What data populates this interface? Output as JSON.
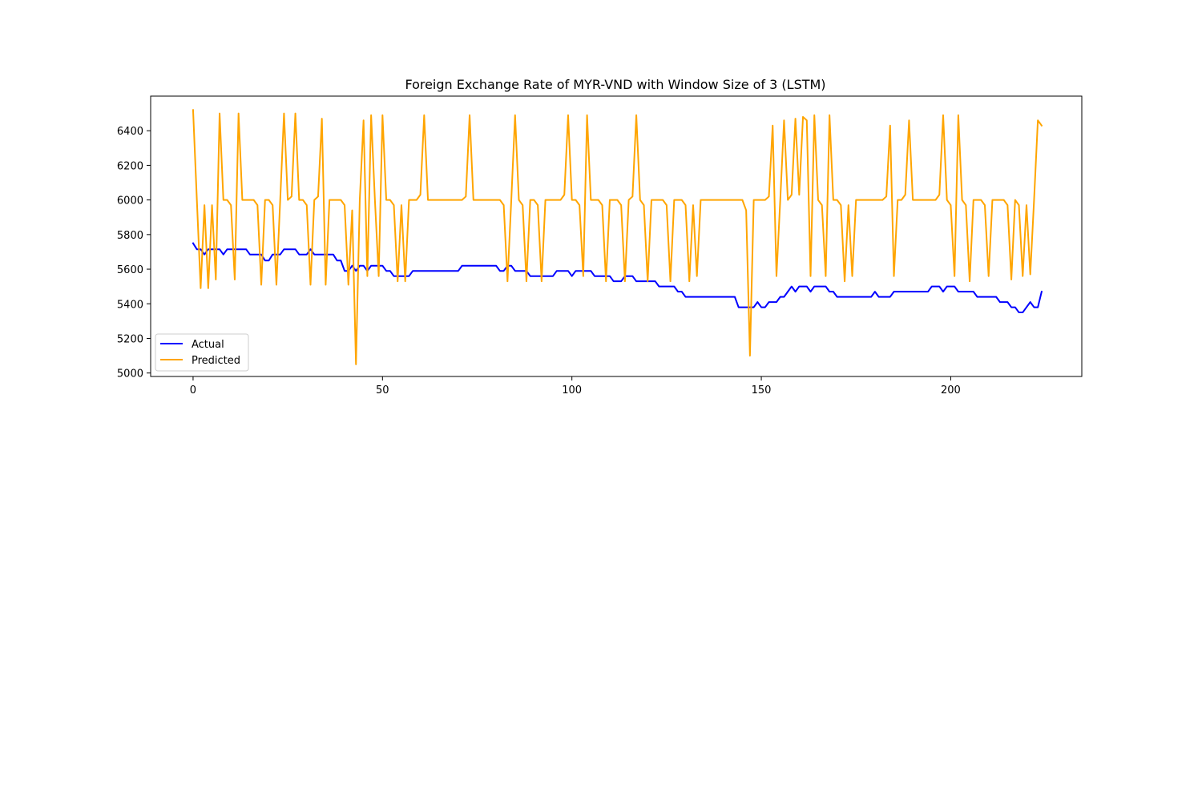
{
  "chart_data": {
    "type": "line",
    "title": "Foreign Exchange Rate of MYR-VND with Window Size of 3 (LSTM)",
    "xlabel": "",
    "ylabel": "",
    "xlim": [
      -11.2,
      234.6
    ],
    "ylim": [
      4980,
      6600
    ],
    "xticks": [
      0,
      50,
      100,
      150,
      200
    ],
    "yticks": [
      5000,
      5200,
      5400,
      5600,
      5800,
      6000,
      6200,
      6400
    ],
    "legend_position": "lower-left",
    "grid": false,
    "series": [
      {
        "name": "Actual",
        "color": "#0000ff",
        "points": [
          [
            0,
            5750
          ],
          [
            1,
            5715
          ],
          [
            2,
            5715
          ],
          [
            3,
            5685
          ],
          [
            4,
            5715
          ],
          [
            5,
            5715
          ],
          [
            6,
            5715
          ],
          [
            7,
            5715
          ],
          [
            8,
            5685
          ],
          [
            9,
            5715
          ],
          [
            10,
            5715
          ],
          [
            11,
            5715
          ],
          [
            12,
            5715
          ],
          [
            13,
            5715
          ],
          [
            14,
            5715
          ],
          [
            15,
            5685
          ],
          [
            16,
            5685
          ],
          [
            17,
            5685
          ],
          [
            18,
            5685
          ],
          [
            19,
            5650
          ],
          [
            20,
            5650
          ],
          [
            21,
            5685
          ],
          [
            22,
            5685
          ],
          [
            23,
            5685
          ],
          [
            24,
            5715
          ],
          [
            25,
            5715
          ],
          [
            26,
            5715
          ],
          [
            27,
            5715
          ],
          [
            28,
            5685
          ],
          [
            29,
            5685
          ],
          [
            30,
            5685
          ],
          [
            31,
            5715
          ],
          [
            32,
            5685
          ],
          [
            33,
            5685
          ],
          [
            34,
            5685
          ],
          [
            35,
            5685
          ],
          [
            36,
            5685
          ],
          [
            37,
            5685
          ],
          [
            38,
            5650
          ],
          [
            39,
            5650
          ],
          [
            40,
            5590
          ],
          [
            41,
            5590
          ],
          [
            42,
            5620
          ],
          [
            43,
            5590
          ],
          [
            44,
            5620
          ],
          [
            45,
            5620
          ],
          [
            46,
            5590
          ],
          [
            47,
            5620
          ],
          [
            48,
            5620
          ],
          [
            49,
            5620
          ],
          [
            50,
            5620
          ],
          [
            51,
            5590
          ],
          [
            52,
            5590
          ],
          [
            53,
            5560
          ],
          [
            54,
            5560
          ],
          [
            55,
            5560
          ],
          [
            56,
            5560
          ],
          [
            57,
            5560
          ],
          [
            58,
            5590
          ],
          [
            59,
            5590
          ],
          [
            60,
            5590
          ],
          [
            70,
            5590
          ],
          [
            71,
            5620
          ],
          [
            72,
            5620
          ],
          [
            80,
            5620
          ],
          [
            81,
            5590
          ],
          [
            82,
            5590
          ],
          [
            83,
            5620
          ],
          [
            84,
            5620
          ],
          [
            85,
            5590
          ],
          [
            88,
            5590
          ],
          [
            89,
            5560
          ],
          [
            95,
            5560
          ],
          [
            96,
            5590
          ],
          [
            99,
            5590
          ],
          [
            100,
            5560
          ],
          [
            101,
            5590
          ],
          [
            105,
            5590
          ],
          [
            106,
            5560
          ],
          [
            110,
            5560
          ],
          [
            111,
            5530
          ],
          [
            113,
            5530
          ],
          [
            114,
            5560
          ],
          [
            116,
            5560
          ],
          [
            117,
            5530
          ],
          [
            122,
            5530
          ],
          [
            123,
            5500
          ],
          [
            127,
            5500
          ],
          [
            128,
            5470
          ],
          [
            129,
            5470
          ],
          [
            130,
            5440
          ],
          [
            143,
            5440
          ],
          [
            144,
            5380
          ],
          [
            148,
            5380
          ],
          [
            149,
            5410
          ],
          [
            150,
            5380
          ],
          [
            151,
            5380
          ],
          [
            152,
            5410
          ],
          [
            154,
            5410
          ],
          [
            155,
            5440
          ],
          [
            156,
            5440
          ],
          [
            157,
            5470
          ],
          [
            158,
            5500
          ],
          [
            159,
            5470
          ],
          [
            160,
            5500
          ],
          [
            162,
            5500
          ],
          [
            163,
            5470
          ],
          [
            164,
            5500
          ],
          [
            167,
            5500
          ],
          [
            168,
            5470
          ],
          [
            169,
            5470
          ],
          [
            170,
            5440
          ],
          [
            179,
            5440
          ],
          [
            180,
            5470
          ],
          [
            181,
            5440
          ],
          [
            184,
            5440
          ],
          [
            185,
            5470
          ],
          [
            194,
            5470
          ],
          [
            195,
            5500
          ],
          [
            197,
            5500
          ],
          [
            198,
            5470
          ],
          [
            199,
            5500
          ],
          [
            201,
            5500
          ],
          [
            202,
            5470
          ],
          [
            206,
            5470
          ],
          [
            207,
            5440
          ],
          [
            212,
            5440
          ],
          [
            213,
            5410
          ],
          [
            215,
            5410
          ],
          [
            216,
            5380
          ],
          [
            217,
            5380
          ],
          [
            218,
            5350
          ],
          [
            219,
            5350
          ],
          [
            220,
            5380
          ],
          [
            221,
            5410
          ],
          [
            222,
            5380
          ],
          [
            223,
            5380
          ],
          [
            224,
            5470
          ]
        ]
      },
      {
        "name": "Predicted",
        "color": "#ffa500",
        "points": [
          [
            0,
            6520
          ],
          [
            1,
            6000
          ],
          [
            2,
            5490
          ],
          [
            3,
            5970
          ],
          [
            4,
            5490
          ],
          [
            5,
            5970
          ],
          [
            6,
            5540
          ],
          [
            7,
            6500
          ],
          [
            8,
            6000
          ],
          [
            9,
            6000
          ],
          [
            10,
            5970
          ],
          [
            11,
            5540
          ],
          [
            12,
            6500
          ],
          [
            13,
            6000
          ],
          [
            14,
            6000
          ],
          [
            15,
            6000
          ],
          [
            16,
            6000
          ],
          [
            17,
            5970
          ],
          [
            18,
            5510
          ],
          [
            19,
            6000
          ],
          [
            20,
            6000
          ],
          [
            21,
            5970
          ],
          [
            22,
            5510
          ],
          [
            23,
            6000
          ],
          [
            24,
            6500
          ],
          [
            25,
            6000
          ],
          [
            26,
            6020
          ],
          [
            27,
            6500
          ],
          [
            28,
            6000
          ],
          [
            29,
            6000
          ],
          [
            30,
            5970
          ],
          [
            31,
            5510
          ],
          [
            32,
            6000
          ],
          [
            33,
            6020
          ],
          [
            34,
            6470
          ],
          [
            35,
            5510
          ],
          [
            36,
            6000
          ],
          [
            37,
            6000
          ],
          [
            38,
            6000
          ],
          [
            39,
            6000
          ],
          [
            40,
            5970
          ],
          [
            41,
            5510
          ],
          [
            42,
            5940
          ],
          [
            43,
            5050
          ],
          [
            44,
            6000
          ],
          [
            45,
            6460
          ],
          [
            46,
            5560
          ],
          [
            47,
            6490
          ],
          [
            48,
            6000
          ],
          [
            49,
            5560
          ],
          [
            50,
            6490
          ],
          [
            51,
            6000
          ],
          [
            52,
            6000
          ],
          [
            53,
            5970
          ],
          [
            54,
            5530
          ],
          [
            55,
            5970
          ],
          [
            56,
            5530
          ],
          [
            57,
            6000
          ],
          [
            58,
            6000
          ],
          [
            59,
            6000
          ],
          [
            60,
            6030
          ],
          [
            61,
            6490
          ],
          [
            62,
            6000
          ],
          [
            70,
            6000
          ],
          [
            71,
            6000
          ],
          [
            72,
            6020
          ],
          [
            73,
            6490
          ],
          [
            74,
            6000
          ],
          [
            80,
            6000
          ],
          [
            81,
            6000
          ],
          [
            82,
            5970
          ],
          [
            83,
            5530
          ],
          [
            84,
            6000
          ],
          [
            85,
            6490
          ],
          [
            86,
            6000
          ],
          [
            87,
            5970
          ],
          [
            88,
            5530
          ],
          [
            89,
            6000
          ],
          [
            90,
            6000
          ],
          [
            91,
            5970
          ],
          [
            92,
            5530
          ],
          [
            93,
            6000
          ],
          [
            94,
            6000
          ],
          [
            97,
            6000
          ],
          [
            98,
            6030
          ],
          [
            99,
            6490
          ],
          [
            100,
            6000
          ],
          [
            101,
            6000
          ],
          [
            102,
            5970
          ],
          [
            103,
            5560
          ],
          [
            104,
            6490
          ],
          [
            105,
            6000
          ],
          [
            106,
            6000
          ],
          [
            107,
            6000
          ],
          [
            108,
            5970
          ],
          [
            109,
            5530
          ],
          [
            110,
            6000
          ],
          [
            111,
            6000
          ],
          [
            112,
            6000
          ],
          [
            113,
            5970
          ],
          [
            114,
            5530
          ],
          [
            115,
            6000
          ],
          [
            116,
            6020
          ],
          [
            117,
            6490
          ],
          [
            118,
            6000
          ],
          [
            119,
            5970
          ],
          [
            120,
            5530
          ],
          [
            121,
            6000
          ],
          [
            124,
            6000
          ],
          [
            125,
            5970
          ],
          [
            126,
            5530
          ],
          [
            127,
            6000
          ],
          [
            128,
            6000
          ],
          [
            129,
            6000
          ],
          [
            130,
            5970
          ],
          [
            131,
            5530
          ],
          [
            132,
            5970
          ],
          [
            133,
            5560
          ],
          [
            134,
            6000
          ],
          [
            145,
            6000
          ],
          [
            146,
            5940
          ],
          [
            147,
            5100
          ],
          [
            148,
            6000
          ],
          [
            149,
            6000
          ],
          [
            150,
            6000
          ],
          [
            151,
            6000
          ],
          [
            152,
            6020
          ],
          [
            153,
            6430
          ],
          [
            154,
            5560
          ],
          [
            155,
            6000
          ],
          [
            156,
            6460
          ],
          [
            157,
            6000
          ],
          [
            158,
            6030
          ],
          [
            159,
            6470
          ],
          [
            160,
            6030
          ],
          [
            161,
            6480
          ],
          [
            162,
            6460
          ],
          [
            163,
            5560
          ],
          [
            164,
            6490
          ],
          [
            165,
            6000
          ],
          [
            166,
            5970
          ],
          [
            167,
            5560
          ],
          [
            168,
            6490
          ],
          [
            169,
            6000
          ],
          [
            170,
            6000
          ],
          [
            171,
            5970
          ],
          [
            172,
            5530
          ],
          [
            173,
            5970
          ],
          [
            174,
            5560
          ],
          [
            175,
            6000
          ],
          [
            182,
            6000
          ],
          [
            183,
            6020
          ],
          [
            184,
            6430
          ],
          [
            185,
            5560
          ],
          [
            186,
            6000
          ],
          [
            187,
            6000
          ],
          [
            188,
            6030
          ],
          [
            189,
            6460
          ],
          [
            190,
            6000
          ],
          [
            196,
            6000
          ],
          [
            197,
            6030
          ],
          [
            198,
            6490
          ],
          [
            199,
            6000
          ],
          [
            200,
            5970
          ],
          [
            201,
            5560
          ],
          [
            202,
            6490
          ],
          [
            203,
            6000
          ],
          [
            204,
            5970
          ],
          [
            205,
            5530
          ],
          [
            206,
            6000
          ],
          [
            208,
            6000
          ],
          [
            209,
            5970
          ],
          [
            210,
            5560
          ],
          [
            211,
            6000
          ],
          [
            214,
            6000
          ],
          [
            215,
            5970
          ],
          [
            216,
            5540
          ],
          [
            217,
            6000
          ],
          [
            218,
            5970
          ],
          [
            219,
            5560
          ],
          [
            220,
            5970
          ],
          [
            221,
            5570
          ],
          [
            222,
            6000
          ],
          [
            223,
            6460
          ],
          [
            224,
            6430
          ]
        ]
      }
    ]
  }
}
